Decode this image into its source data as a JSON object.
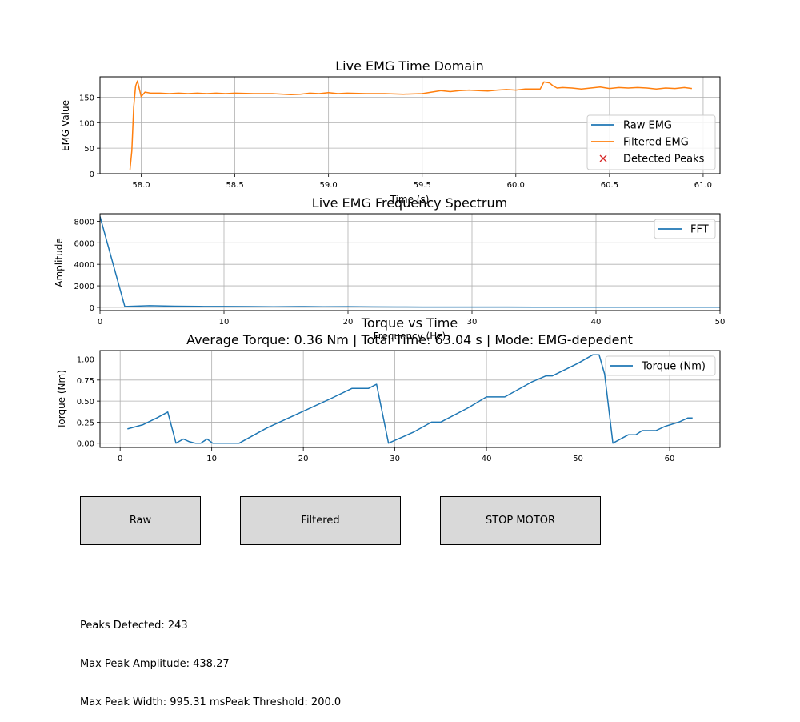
{
  "chart_data": [
    {
      "type": "line",
      "title": "Live EMG Time Domain",
      "xlabel": "Time (s)",
      "ylabel": "EMG Value",
      "xlim": [
        57.78,
        61.09
      ],
      "ylim": [
        0,
        190
      ],
      "xticks": [
        58.0,
        58.5,
        59.0,
        59.5,
        60.0,
        60.5,
        61.0
      ],
      "xtick_labels": [
        "58.0",
        "58.5",
        "59.0",
        "59.5",
        "60.0",
        "60.5",
        "61.0"
      ],
      "yticks": [
        0,
        50,
        100,
        150
      ],
      "ytick_labels": [
        "0",
        "50",
        "100",
        "150"
      ],
      "grid": true,
      "legend": "center-right",
      "series": [
        {
          "name": "Raw EMG",
          "color": "#1f77b4",
          "x": [],
          "y": []
        },
        {
          "name": "Filtered EMG",
          "color": "#ff7f0e",
          "x": [
            57.94,
            57.95,
            57.96,
            57.97,
            57.98,
            58.0,
            58.02,
            58.05,
            58.1,
            58.15,
            58.2,
            58.25,
            58.3,
            58.35,
            58.4,
            58.45,
            58.5,
            58.6,
            58.7,
            58.8,
            58.85,
            58.9,
            58.95,
            59.0,
            59.05,
            59.1,
            59.2,
            59.3,
            59.4,
            59.5,
            59.55,
            59.6,
            59.65,
            59.7,
            59.75,
            59.8,
            59.85,
            59.9,
            59.95,
            60.0,
            60.05,
            60.1,
            60.13,
            60.15,
            60.18,
            60.2,
            60.22,
            60.25,
            60.3,
            60.35,
            60.4,
            60.45,
            60.5,
            60.55,
            60.6,
            60.65,
            60.7,
            60.75,
            60.8,
            60.85,
            60.9,
            60.94
          ],
          "y": [
            8,
            45,
            130,
            172,
            182,
            151,
            160,
            158,
            158,
            157,
            158,
            157,
            158,
            157,
            158,
            157,
            158,
            157,
            157,
            155,
            156,
            158,
            157,
            159,
            157,
            158,
            157,
            157,
            156,
            157,
            160,
            163,
            161,
            163,
            164,
            163,
            162,
            164,
            165,
            164,
            166,
            166,
            166,
            180,
            178,
            172,
            168,
            169,
            168,
            166,
            168,
            170,
            167,
            169,
            168,
            169,
            168,
            166,
            168,
            167,
            169,
            167
          ]
        },
        {
          "name": "Detected Peaks",
          "color": "#d62728",
          "marker": "x",
          "x": [],
          "y": []
        }
      ]
    },
    {
      "type": "line",
      "title": "Live EMG Frequency Spectrum",
      "xlabel": "Frequency (Hz)",
      "ylabel": "Amplitude",
      "xlim": [
        0,
        50
      ],
      "ylim": [
        -300,
        8700
      ],
      "xticks": [
        0,
        10,
        20,
        30,
        40,
        50
      ],
      "xtick_labels": [
        "0",
        "10",
        "20",
        "30",
        "40",
        "50"
      ],
      "yticks": [
        0,
        2000,
        4000,
        6000,
        8000
      ],
      "ytick_labels": [
        "0",
        "2000",
        "4000",
        "6000",
        "8000"
      ],
      "grid": true,
      "legend": "top-right",
      "series": [
        {
          "name": "FFT",
          "color": "#1f77b4",
          "x": [
            0,
            2,
            4,
            6,
            8,
            10,
            12,
            14,
            16,
            18,
            20,
            22,
            24,
            26,
            28,
            30,
            35,
            40,
            45,
            50
          ],
          "y": [
            8450,
            80,
            150,
            110,
            90,
            80,
            70,
            60,
            70,
            60,
            65,
            40,
            35,
            30,
            30,
            25,
            20,
            20,
            20,
            15
          ]
        }
      ]
    },
    {
      "type": "line",
      "title": "Torque vs Time",
      "subtitle": "Average Torque: 0.36 Nm | Total Time: 63.04 s | Mode: EMG-depedent",
      "xlabel": "",
      "ylabel": "Torque (Nm)",
      "xlim": [
        -2.2,
        65.5
      ],
      "ylim": [
        -0.05,
        1.1
      ],
      "xticks": [
        0,
        10,
        20,
        30,
        40,
        50,
        60
      ],
      "xtick_labels": [
        "0",
        "10",
        "20",
        "30",
        "40",
        "50",
        "60"
      ],
      "yticks": [
        0.0,
        0.25,
        0.5,
        0.75,
        1.0
      ],
      "ytick_labels": [
        "0.00",
        "0.25",
        "0.50",
        "0.75",
        "1.00"
      ],
      "grid": true,
      "legend": "top-right",
      "series": [
        {
          "name": "Torque (Nm)",
          "color": "#1f77b4",
          "x": [
            0.8,
            2.5,
            4.0,
            5.2,
            6.1,
            6.9,
            7.5,
            8.2,
            8.8,
            9.5,
            10.1,
            13.0,
            16.0,
            20.0,
            23.0,
            25.3,
            27.1,
            28.0,
            29.3,
            32.0,
            34.0,
            35.0,
            38.0,
            40.0,
            41.0,
            42.0,
            45.0,
            46.5,
            47.2,
            50.0,
            51.6,
            52.3,
            52.9,
            53.8,
            55.5,
            56.3,
            57.0,
            58.5,
            59.5,
            61.0,
            62.0,
            62.5
          ],
          "y": [
            0.17,
            0.22,
            0.3,
            0.37,
            0.0,
            0.05,
            0.02,
            0.0,
            0.0,
            0.05,
            0.0,
            0.0,
            0.18,
            0.38,
            0.53,
            0.65,
            0.65,
            0.7,
            0.0,
            0.13,
            0.25,
            0.25,
            0.42,
            0.55,
            0.55,
            0.55,
            0.73,
            0.8,
            0.8,
            0.95,
            1.05,
            1.05,
            0.82,
            0.0,
            0.1,
            0.1,
            0.15,
            0.15,
            0.2,
            0.25,
            0.3,
            0.3
          ]
        }
      ]
    }
  ],
  "controls": {
    "raw_label": "Raw",
    "filtered_label": "Filtered",
    "stop_label": "STOP MOTOR"
  },
  "stats": {
    "line1": "Peaks Detected: 243",
    "line2": "Max Peak Amplitude: 438.27",
    "line3": "Max Peak Width: 995.31 msPeak Threshold: 200.0"
  }
}
